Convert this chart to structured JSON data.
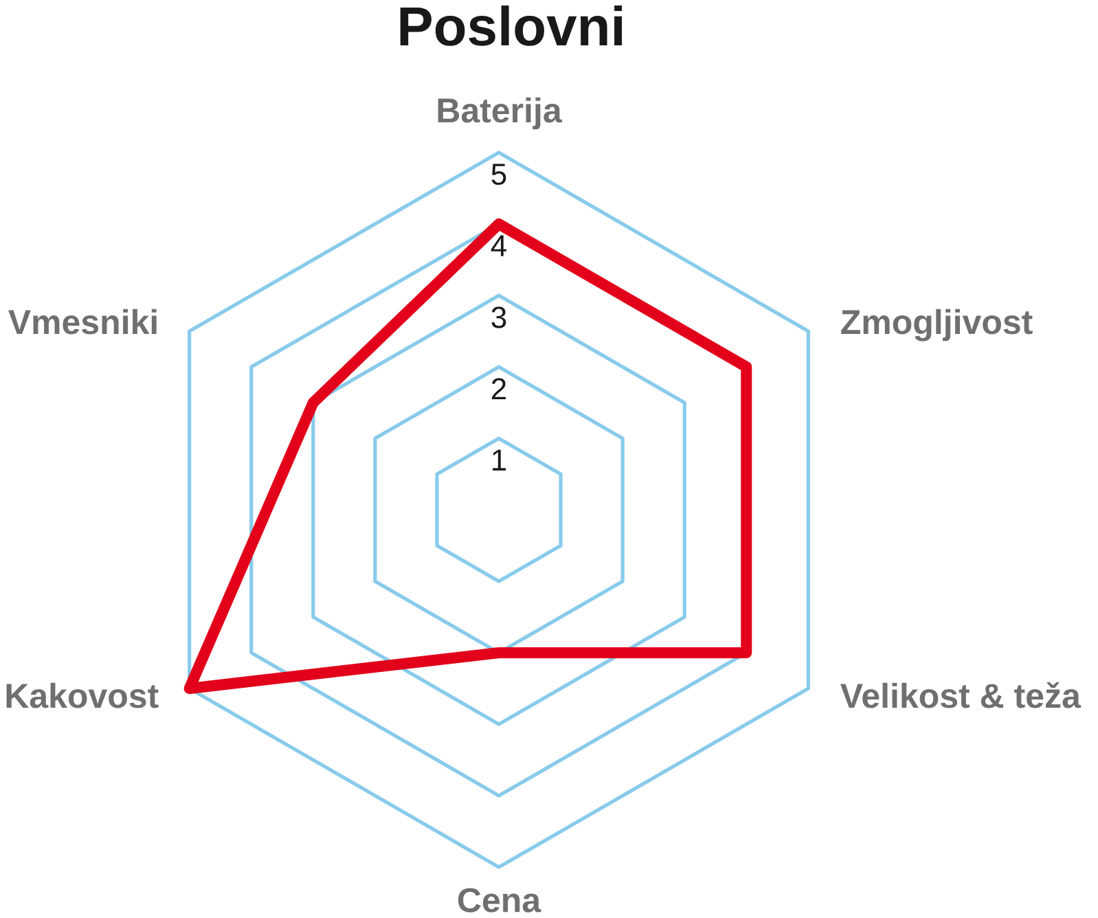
{
  "chart_data": {
    "type": "radar",
    "title": "Poslovni",
    "categories": [
      "Baterija",
      "Zmogljivost",
      "Velikost & teža",
      "Cena",
      "Kakovost",
      "Vmesniki"
    ],
    "series": [
      {
        "color": "#e2001a",
        "values": [
          4,
          4,
          4,
          2,
          5,
          3
        ]
      }
    ],
    "ylim": [
      0,
      5
    ],
    "yticks": [
      1,
      2,
      3,
      4,
      5
    ],
    "grid": true
  }
}
